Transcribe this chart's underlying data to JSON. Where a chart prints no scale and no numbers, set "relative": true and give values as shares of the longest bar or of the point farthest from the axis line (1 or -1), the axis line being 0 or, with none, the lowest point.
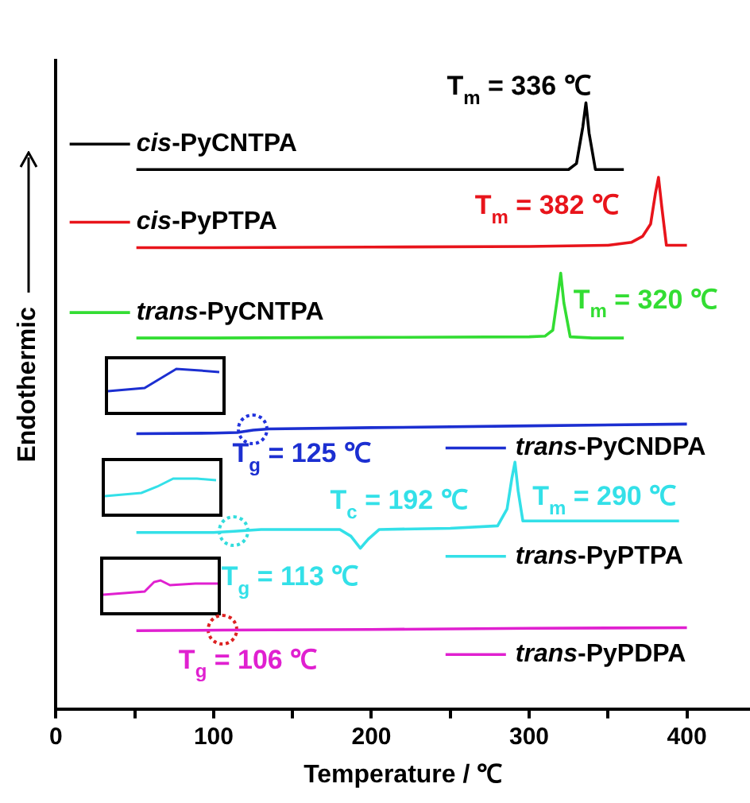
{
  "chart_data": {
    "type": "line",
    "relative": true,
    "legend": "right",
    "xlabel": "Temperature / ℃",
    "ylabel": "Endothermic",
    "xlim": [
      0,
      440
    ],
    "xticks": [
      0,
      {
        "value": 50,
        "label": null
      },
      100,
      {
        "value": 150,
        "label": null
      },
      200,
      {
        "value": 250,
        "label": null
      },
      300,
      {
        "value": 350,
        "label": null
      },
      400
    ],
    "series": [
      {
        "name": "cis-PyCNTPA",
        "color": "#000000",
        "x": [
          51,
          100,
          200,
          300,
          325,
          330,
          334,
          336,
          338,
          342,
          350,
          360
        ],
        "values": [
          0.89,
          0.89,
          0.89,
          0.89,
          0.89,
          0.9,
          0.96,
          1.0,
          0.95,
          0.89,
          0.89,
          0.89
        ]
      },
      {
        "name": "cis-PyPTPA",
        "color": "#e8141b",
        "x": [
          51,
          100,
          200,
          300,
          350,
          365,
          372,
          377,
          380,
          382,
          384,
          387,
          400
        ],
        "values": [
          0.761,
          0.761,
          0.762,
          0.763,
          0.765,
          0.77,
          0.78,
          0.8,
          0.85,
          0.877,
          0.83,
          0.765,
          0.765
        ]
      },
      {
        "name": "trans-PyCNTPA",
        "color": "#33dd33",
        "x": [
          51,
          100,
          200,
          300,
          310,
          315,
          318,
          320,
          322,
          326,
          340,
          360
        ],
        "values": [
          0.612,
          0.612,
          0.613,
          0.614,
          0.615,
          0.625,
          0.68,
          0.719,
          0.67,
          0.614,
          0.612,
          0.612
        ]
      },
      {
        "name": "trans-PyCNDPA",
        "color": "#1c2fd1",
        "x": [
          51,
          100,
          115,
          125,
          135,
          200,
          300,
          400
        ],
        "values": [
          0.454,
          0.455,
          0.456,
          0.46,
          0.462,
          0.464,
          0.467,
          0.47
        ]
      },
      {
        "name": "trans-PyPTPA",
        "color": "#33e0e8",
        "x": [
          51,
          100,
          113,
          130,
          180,
          187,
          193,
          198,
          205,
          250,
          280,
          286,
          289,
          291,
          293,
          296,
          320,
          395
        ],
        "values": [
          0.291,
          0.291,
          0.293,
          0.296,
          0.296,
          0.285,
          0.265,
          0.28,
          0.296,
          0.298,
          0.302,
          0.33,
          0.38,
          0.407,
          0.36,
          0.31,
          0.31,
          0.31
        ]
      },
      {
        "name": "trans-PyPDPA",
        "color": "#e020d0",
        "x": [
          51,
          106,
          200,
          300,
          400
        ],
        "values": [
          0.129,
          0.13,
          0.131,
          0.133,
          0.134
        ]
      }
    ],
    "annotations": [
      {
        "text": "T$_{m}$ = 336 ℃",
        "x": 336,
        "y": 1.0
      },
      {
        "text": "T$_{m}$ = 382 ℃",
        "x": 382,
        "y": 0.877
      },
      {
        "text": "T$_{m}$ = 320 ℃",
        "x": 320,
        "y": 0.719
      },
      {
        "text": "T$_{g}$ = 125 ℃",
        "x": 125,
        "y": 0.46
      },
      {
        "text": "T$_{c}$ = 192 ℃",
        "x": 193,
        "y": 0.265
      },
      {
        "text": "T$_{m}$ = 290 ℃",
        "x": 291,
        "y": 0.407
      },
      {
        "text": "T$_{g}$ = 113 ℃",
        "x": 113,
        "y": 0.293
      },
      {
        "text": "T$_{g}$ = 106 ℃",
        "x": 106,
        "y": 0.13
      }
    ]
  }
}
